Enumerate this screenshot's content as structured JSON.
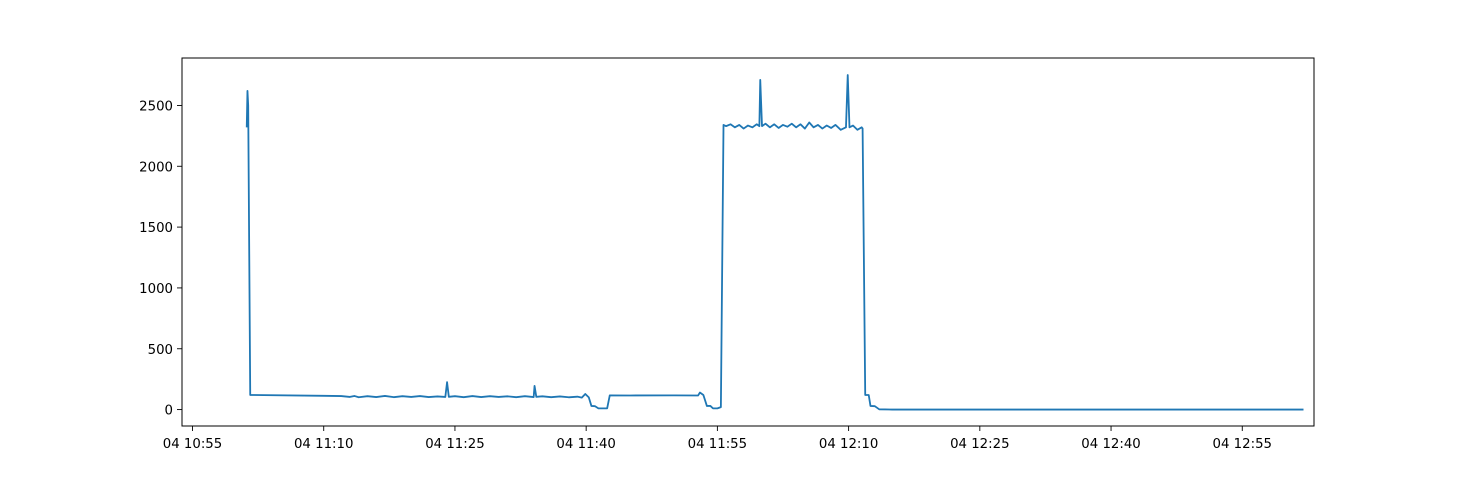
{
  "chart_data": {
    "type": "line",
    "title": "",
    "xlabel": "",
    "ylabel": "",
    "x_axis_kind": "time",
    "xlim": [
      "04 10:53:48",
      "05 13:03:12"
    ],
    "xlim_minutes_from_10_55": [
      -1.2,
      128.2
    ],
    "ylim": [
      -135,
      2890
    ],
    "grid": false,
    "legend": "none",
    "x_ticks": [
      {
        "label": "04 10:55",
        "time": "04 10:55"
      },
      {
        "label": "04 11:10",
        "time": "04 11:10"
      },
      {
        "label": "04 11:25",
        "time": "04 11:25"
      },
      {
        "label": "04 11:40",
        "time": "04 11:40"
      },
      {
        "label": "04 11:55",
        "time": "04 11:55"
      },
      {
        "label": "04 12:10",
        "time": "04 12:10"
      },
      {
        "label": "04 12:25",
        "time": "04 12:25"
      },
      {
        "label": "04 12:40",
        "time": "04 12:40"
      },
      {
        "label": "04 12:55",
        "time": "04 12:55"
      }
    ],
    "y_ticks": [
      {
        "label": "0",
        "value": 0
      },
      {
        "label": "500",
        "value": 500
      },
      {
        "label": "1000",
        "value": 1000
      },
      {
        "label": "1500",
        "value": 1500
      },
      {
        "label": "2000",
        "value": 2000
      },
      {
        "label": "2500",
        "value": 2500
      }
    ],
    "series": [
      {
        "color": "#1f77b4",
        "points": [
          [
            "04 11:01:12",
            2320
          ],
          [
            "04 11:01:17",
            2620
          ],
          [
            "04 11:01:22",
            2500
          ],
          [
            "04 11:01:36",
            120
          ],
          [
            "04 11:10:00",
            113
          ],
          [
            "04 11:12:00",
            111
          ],
          [
            "04 11:13:00",
            104
          ],
          [
            "04 11:13:30",
            112
          ],
          [
            "04 11:14:00",
            101
          ],
          [
            "04 11:15:00",
            110
          ],
          [
            "04 11:16:00",
            103
          ],
          [
            "04 11:17:00",
            112
          ],
          [
            "04 11:18:00",
            102
          ],
          [
            "04 11:19:00",
            110
          ],
          [
            "04 11:20:00",
            104
          ],
          [
            "04 11:21:00",
            111
          ],
          [
            "04 11:22:00",
            103
          ],
          [
            "04 11:23:00",
            108
          ],
          [
            "04 11:23:54",
            104
          ],
          [
            "04 11:24:06",
            225
          ],
          [
            "04 11:24:18",
            105
          ],
          [
            "04 11:25:00",
            110
          ],
          [
            "04 11:26:00",
            102
          ],
          [
            "04 11:27:00",
            111
          ],
          [
            "04 11:28:00",
            103
          ],
          [
            "04 11:29:00",
            110
          ],
          [
            "04 11:30:00",
            104
          ],
          [
            "04 11:31:00",
            109
          ],
          [
            "04 11:32:00",
            102
          ],
          [
            "04 11:33:00",
            110
          ],
          [
            "04 11:34:00",
            103
          ],
          [
            "04 11:34:06",
            195
          ],
          [
            "04 11:34:18",
            105
          ],
          [
            "04 11:35:00",
            109
          ],
          [
            "04 11:36:00",
            102
          ],
          [
            "04 11:37:00",
            108
          ],
          [
            "04 11:38:00",
            101
          ],
          [
            "04 11:39:00",
            106
          ],
          [
            "04 11:39:30",
            98
          ],
          [
            "04 11:39:54",
            128
          ],
          [
            "04 11:40:18",
            100
          ],
          [
            "04 11:40:36",
            30
          ],
          [
            "04 11:41:00",
            28
          ],
          [
            "04 11:41:24",
            10
          ],
          [
            "04 11:42:00",
            10
          ],
          [
            "04 11:42:24",
            10
          ],
          [
            "04 11:42:42",
            117
          ],
          [
            "04 11:45:00",
            116
          ],
          [
            "04 11:50:00",
            117
          ],
          [
            "04 11:52:48",
            116
          ],
          [
            "04 11:53:00",
            140
          ],
          [
            "04 11:53:24",
            120
          ],
          [
            "04 11:53:48",
            30
          ],
          [
            "04 11:54:12",
            30
          ],
          [
            "04 11:54:30",
            10
          ],
          [
            "04 11:55:00",
            10
          ],
          [
            "04 11:55:24",
            20
          ],
          [
            "04 11:55:42",
            2340
          ],
          [
            "04 11:56:00",
            2330
          ],
          [
            "04 11:56:30",
            2345
          ],
          [
            "04 11:57:00",
            2320
          ],
          [
            "04 11:57:30",
            2340
          ],
          [
            "04 11:58:00",
            2310
          ],
          [
            "04 11:58:30",
            2335
          ],
          [
            "04 11:59:00",
            2320
          ],
          [
            "04 11:59:30",
            2345
          ],
          [
            "04 11:59:48",
            2330
          ],
          [
            "04 11:59:54",
            2710
          ],
          [
            "04 12:00:06",
            2330
          ],
          [
            "04 12:00:30",
            2350
          ],
          [
            "04 12:01:00",
            2320
          ],
          [
            "04 12:01:30",
            2345
          ],
          [
            "04 12:02:00",
            2315
          ],
          [
            "04 12:02:30",
            2340
          ],
          [
            "04 12:03:00",
            2325
          ],
          [
            "04 12:03:30",
            2350
          ],
          [
            "04 12:04:00",
            2320
          ],
          [
            "04 12:04:30",
            2345
          ],
          [
            "04 12:05:00",
            2310
          ],
          [
            "04 12:05:30",
            2360
          ],
          [
            "04 12:06:00",
            2320
          ],
          [
            "04 12:06:30",
            2340
          ],
          [
            "04 12:07:00",
            2310
          ],
          [
            "04 12:07:30",
            2335
          ],
          [
            "04 12:08:00",
            2315
          ],
          [
            "04 12:08:30",
            2340
          ],
          [
            "04 12:09:06",
            2300
          ],
          [
            "04 12:09:42",
            2320
          ],
          [
            "04 12:09:54",
            2750
          ],
          [
            "04 12:10:06",
            2320
          ],
          [
            "04 12:10:30",
            2335
          ],
          [
            "04 12:11:00",
            2300
          ],
          [
            "04 12:11:30",
            2320
          ],
          [
            "04 12:11:36",
            2310
          ],
          [
            "04 12:11:54",
            120
          ],
          [
            "04 12:12:18",
            120
          ],
          [
            "04 12:12:30",
            30
          ],
          [
            "04 12:13:00",
            28
          ],
          [
            "04 12:13:30",
            2
          ],
          [
            "04 12:15:00",
            0
          ],
          [
            "04 12:30:00",
            0
          ],
          [
            "04 12:45:00",
            0
          ],
          [
            "05 13:02:00",
            0
          ]
        ]
      }
    ]
  }
}
